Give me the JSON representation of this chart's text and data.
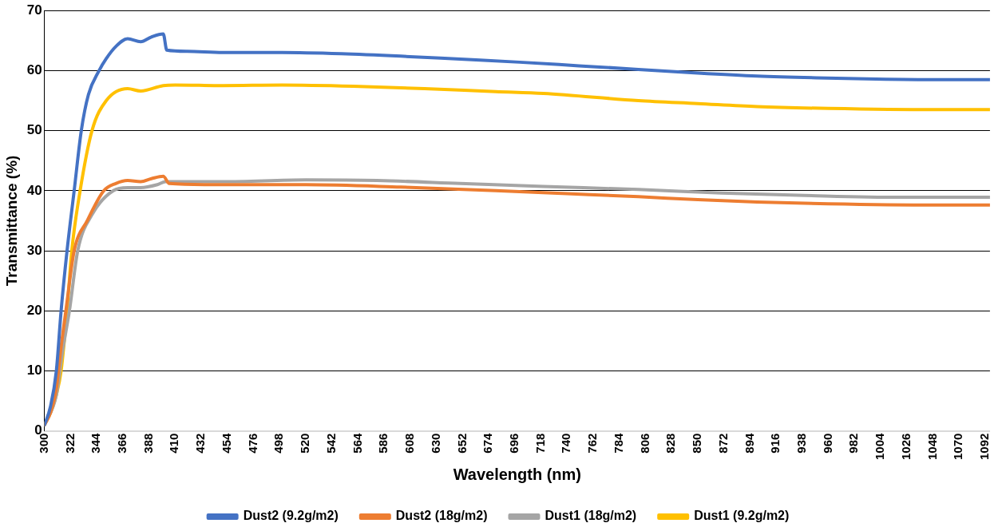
{
  "chart_data": {
    "type": "line",
    "xlabel": "Wavelength (nm)",
    "ylabel": "Transmittance (%)",
    "xlim": [
      300,
      1096
    ],
    "xticks": [
      300,
      322,
      344,
      366,
      388,
      410,
      432,
      454,
      476,
      498,
      520,
      542,
      564,
      586,
      608,
      630,
      652,
      674,
      696,
      718,
      740,
      762,
      784,
      806,
      828,
      850,
      872,
      894,
      916,
      938,
      960,
      982,
      1004,
      1026,
      1048,
      1070,
      1092
    ],
    "ylim": [
      0,
      70
    ],
    "yticks": [
      0,
      10,
      20,
      30,
      40,
      50,
      60,
      70
    ],
    "grid": "y",
    "legend": "bottom",
    "marker": "none",
    "line_style": "solid",
    "series": [
      {
        "name": "Dust2 (9.2g/m2)",
        "color": "#4472c4",
        "x": [
          300,
          305,
          310,
          314,
          319,
          325,
          331,
          337,
          346,
          352,
          360,
          370,
          381,
          390,
          400,
          403,
          420,
          450,
          500,
          550,
          600,
          650,
          700,
          750,
          800,
          850,
          900,
          950,
          1000,
          1050,
          1096
        ],
        "values": [
          1,
          4,
          10,
          20,
          30,
          40,
          50,
          56,
          60,
          62,
          64,
          65.3,
          64.8,
          65.6,
          66.1,
          63.4,
          63.2,
          63.0,
          63.0,
          62.8,
          62.4,
          61.9,
          61.4,
          60.8,
          60.2,
          59.6,
          59.1,
          58.8,
          58.6,
          58.5,
          58.5
        ]
      },
      {
        "name": "Dust2 (18g/m2)",
        "color": "#ed7d31",
        "x": [
          300,
          305,
          310,
          314,
          318,
          325,
          336,
          350,
          360,
          370,
          381,
          390,
          400,
          405,
          450,
          520,
          600,
          680,
          740,
          800,
          850,
          900,
          960,
          1050,
          1096
        ],
        "values": [
          1,
          3,
          7,
          14,
          20,
          30,
          35,
          40,
          41.2,
          41.7,
          41.5,
          42,
          42.4,
          41.2,
          41,
          41,
          40.6,
          40,
          39.5,
          39,
          38.5,
          38.1,
          37.8,
          37.6,
          37.6
        ]
      },
      {
        "name": "Dust1 (18g/m2)",
        "color": "#a5a5a5",
        "x": [
          300,
          310,
          315,
          321,
          328,
          340,
          358,
          370,
          381,
          395,
          402,
          450,
          520,
          580,
          650,
          720,
          800,
          870,
          940,
          1020,
          1096
        ],
        "values": [
          1,
          6,
          13,
          20,
          30,
          36,
          40,
          40.5,
          40.5,
          41,
          41.5,
          41.5,
          41.8,
          41.7,
          41.2,
          40.7,
          40.2,
          39.6,
          39.2,
          38.9,
          38.9
        ]
      },
      {
        "name": "Dust1 (9.2g/m2)",
        "color": "#ffc000",
        "x": [
          300,
          305,
          310,
          314,
          319,
          323,
          330,
          340,
          352,
          370,
          381,
          400,
          410,
          450,
          500,
          560,
          620,
          680,
          720,
          800,
          850,
          900,
          960,
          1050,
          1096
        ],
        "values": [
          1,
          3,
          6,
          10,
          20,
          30,
          40,
          50,
          55,
          57,
          56.6,
          57.5,
          57.6,
          57.5,
          57.6,
          57.4,
          57,
          56.5,
          56.2,
          55,
          54.5,
          54,
          53.7,
          53.5,
          53.5
        ]
      }
    ]
  }
}
